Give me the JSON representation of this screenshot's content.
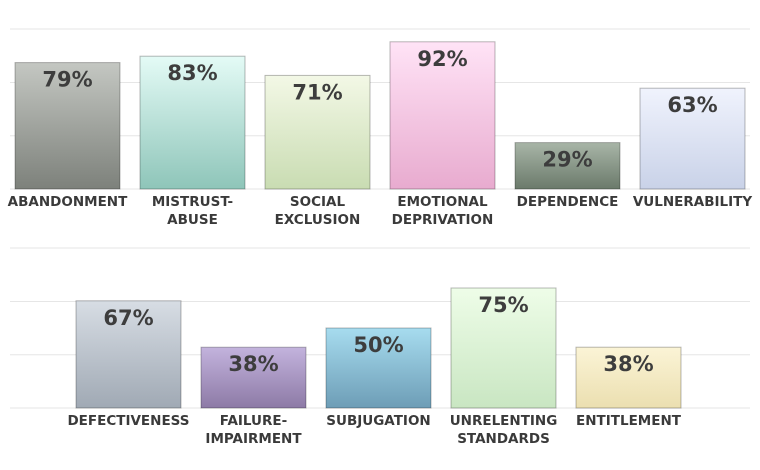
{
  "chart_data": [
    {
      "type": "bar",
      "title": "",
      "xlabel": "",
      "ylabel": "",
      "ylim": [
        0,
        100
      ],
      "grid": true,
      "categories": [
        "ABANDONMENT",
        "MISTRUST-ABUSE",
        "SOCIAL EXCLUSION",
        "EMOTIONAL DEPRIVATION",
        "DEPENDENCE",
        "VULNERABILITY"
      ],
      "category_lines": [
        [
          "ABANDONMENT"
        ],
        [
          "MISTRUST-",
          "ABUSE"
        ],
        [
          "SOCIAL",
          "EXCLUSION"
        ],
        [
          "EMOTIONAL",
          "DEPRIVATION"
        ],
        [
          "DEPENDENCE"
        ],
        [
          "VULNERABILITY"
        ]
      ],
      "values": [
        79,
        83,
        71,
        92,
        29,
        63
      ],
      "value_labels": [
        "79%",
        "83%",
        "71%",
        "92%",
        "29%",
        "63%"
      ],
      "bar_colors": [
        [
          "#c4c7c2",
          "#7d817b"
        ],
        [
          "#e4fbf6",
          "#8ec5b9"
        ],
        [
          "#f3f8e6",
          "#c9dcb2"
        ],
        [
          "#ffe3f6",
          "#e8abcf"
        ],
        [
          "#a8b5a7",
          "#6b7a6b"
        ],
        [
          "#f0f3fd",
          "#c9d2e8"
        ]
      ]
    },
    {
      "type": "bar",
      "title": "",
      "xlabel": "",
      "ylabel": "",
      "ylim": [
        0,
        100
      ],
      "grid": true,
      "categories": [
        "DEFECTIVENESS",
        "FAILURE-IMPAIRMENT",
        "SUBJUGATION",
        "UNRELENTING STANDARDS",
        "ENTITLEMENT"
      ],
      "category_lines": [
        [
          "DEFECTIVENESS"
        ],
        [
          "FAILURE-",
          "IMPAIRMENT"
        ],
        [
          "SUBJUGATION"
        ],
        [
          "UNRELENTING",
          "STANDARDS"
        ],
        [
          "ENTITLEMENT"
        ]
      ],
      "values": [
        67,
        38,
        50,
        75,
        38
      ],
      "value_labels": [
        "67%",
        "38%",
        "50%",
        "75%",
        "38%"
      ],
      "bar_colors": [
        [
          "#d7dde4",
          "#a0a9b4"
        ],
        [
          "#c3b3dd",
          "#8d7aa6"
        ],
        [
          "#a7dcef",
          "#6d9db6"
        ],
        [
          "#eefde8",
          "#c9e6c2"
        ],
        [
          "#fbf4d6",
          "#ebdfb0"
        ]
      ]
    }
  ]
}
